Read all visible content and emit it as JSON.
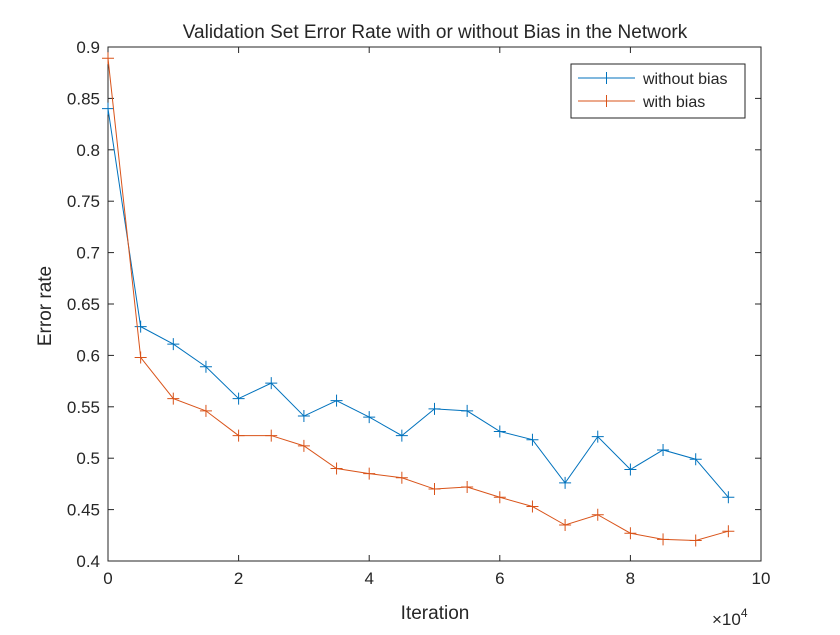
{
  "chart_data": {
    "type": "line",
    "title": "Validation Set Error Rate with or without Bias in the Network",
    "xlabel": "Iteration",
    "ylabel": "Error rate",
    "x_exponent_label": "×10",
    "x_exponent_power": "4",
    "xlim": [
      0,
      10
    ],
    "ylim": [
      0.4,
      0.9
    ],
    "xticks": [
      0,
      2,
      4,
      6,
      8,
      10
    ],
    "xtick_labels": [
      "0",
      "2",
      "4",
      "6",
      "8",
      "10"
    ],
    "yticks": [
      0.4,
      0.45,
      0.5,
      0.55,
      0.6,
      0.65,
      0.7,
      0.75,
      0.8,
      0.85,
      0.9
    ],
    "ytick_labels": [
      "0.4",
      "0.45",
      "0.5",
      "0.55",
      "0.6",
      "0.65",
      "0.7",
      "0.75",
      "0.8",
      "0.85",
      "0.9"
    ],
    "grid": false,
    "legend_position": "top-right",
    "x": [
      0,
      0.5,
      1,
      1.5,
      2,
      2.5,
      3,
      3.5,
      4,
      4.5,
      5,
      5.5,
      6,
      6.5,
      7,
      7.5,
      8,
      8.5,
      9,
      9.5
    ],
    "series": [
      {
        "name": "without bias",
        "color": "#0072BD",
        "marker": "+",
        "values": [
          0.84,
          0.628,
          0.611,
          0.589,
          0.558,
          0.573,
          0.541,
          0.556,
          0.54,
          0.522,
          0.548,
          0.546,
          0.526,
          0.518,
          0.476,
          0.521,
          0.489,
          0.508,
          0.499,
          0.462
        ]
      },
      {
        "name": "with bias",
        "color": "#D95319",
        "marker": "+",
        "values": [
          0.889,
          0.598,
          0.558,
          0.546,
          0.522,
          0.522,
          0.512,
          0.49,
          0.485,
          0.481,
          0.47,
          0.472,
          0.462,
          0.453,
          0.435,
          0.445,
          0.427,
          0.421,
          0.42,
          0.429
        ]
      }
    ]
  }
}
